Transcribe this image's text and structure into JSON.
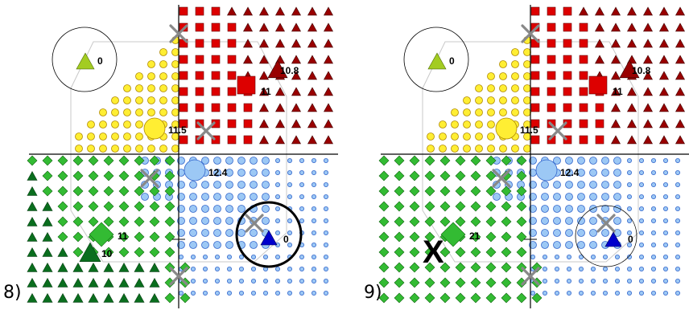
{
  "panels": [
    {
      "label": "8)",
      "big_markers": [
        {
          "name": "square-red",
          "label": "11"
        },
        {
          "name": "triangle-darkred",
          "label": "10.8"
        },
        {
          "name": "circle-yellow",
          "label": "11.5"
        },
        {
          "name": "circle-lightblue",
          "label": "12.4"
        },
        {
          "name": "triangle-lime-circled",
          "label": "0"
        },
        {
          "name": "triangle-blue-circled",
          "label": "0"
        },
        {
          "name": "diamond-green",
          "label": "11"
        },
        {
          "name": "triangle-darkgreen",
          "label": "10"
        }
      ]
    },
    {
      "label": "9)",
      "big_markers": [
        {
          "name": "square-red",
          "label": "11"
        },
        {
          "name": "triangle-darkred",
          "label": "10.8"
        },
        {
          "name": "circle-yellow",
          "label": "11.5"
        },
        {
          "name": "circle-lightblue",
          "label": "12.4"
        },
        {
          "name": "triangle-lime-circled",
          "label": "0"
        },
        {
          "name": "triangle-blue-circled",
          "label": "0"
        },
        {
          "name": "diamond-green",
          "label": "21"
        }
      ],
      "x_mark": "X"
    }
  ],
  "colors": {
    "red_square": "#dd0000",
    "dark_red_triangle": "#990000",
    "yellow_circle": "#ffee33",
    "light_blue_circle": "#9cc8f5",
    "green_diamond": "#33bb33",
    "dark_green_triangle": "#0a6e1e",
    "lime_triangle": "#a3cc22",
    "blue_triangle": "#0000cc",
    "cross_gray": "#888888"
  }
}
